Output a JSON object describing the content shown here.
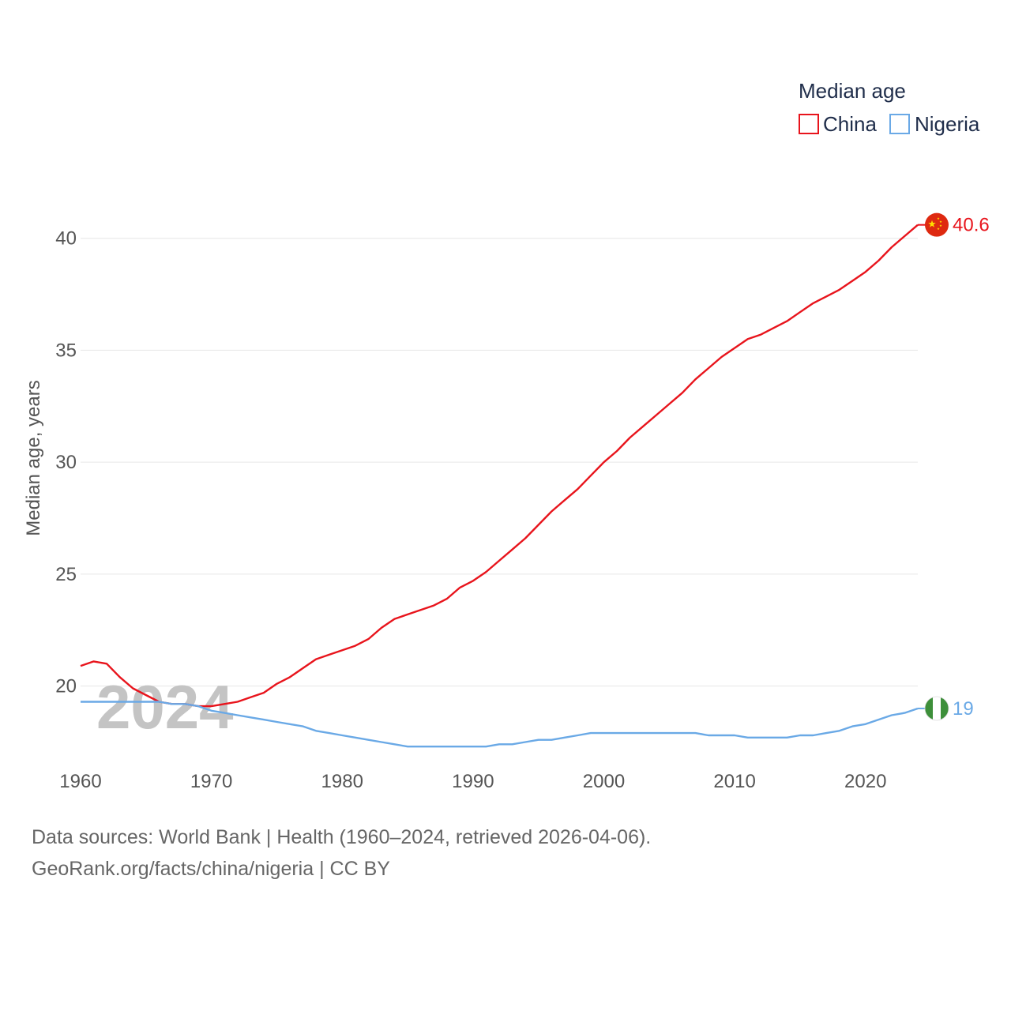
{
  "chart_data": {
    "type": "line",
    "legend_title": "Median age",
    "ylabel": "Median age, years",
    "xlim": [
      1960,
      2024
    ],
    "ylim": [
      16.6,
      42.0
    ],
    "x_ticks": [
      1960,
      1970,
      1980,
      1990,
      2000,
      2010,
      2020
    ],
    "y_ticks": [
      20,
      25,
      30,
      35,
      40
    ],
    "year_label": "2024",
    "x": [
      1960,
      1961,
      1962,
      1963,
      1964,
      1965,
      1966,
      1967,
      1968,
      1969,
      1970,
      1971,
      1972,
      1973,
      1974,
      1975,
      1976,
      1977,
      1978,
      1979,
      1980,
      1981,
      1982,
      1983,
      1984,
      1985,
      1986,
      1987,
      1988,
      1989,
      1990,
      1991,
      1992,
      1993,
      1994,
      1995,
      1996,
      1997,
      1998,
      1999,
      2000,
      2001,
      2002,
      2003,
      2004,
      2005,
      2006,
      2007,
      2008,
      2009,
      2010,
      2011,
      2012,
      2013,
      2014,
      2015,
      2016,
      2017,
      2018,
      2019,
      2020,
      2021,
      2022,
      2023,
      2024
    ],
    "series": [
      {
        "name": "China",
        "color": "#e8141c",
        "end_label": "40.6",
        "flag_icon": "china-flag-icon",
        "values": [
          20.9,
          21.1,
          21.0,
          20.4,
          19.9,
          19.6,
          19.3,
          19.2,
          19.2,
          19.1,
          19.1,
          19.2,
          19.3,
          19.5,
          19.7,
          20.1,
          20.4,
          20.8,
          21.2,
          21.4,
          21.6,
          21.8,
          22.1,
          22.6,
          23.0,
          23.2,
          23.4,
          23.6,
          23.9,
          24.4,
          24.7,
          25.1,
          25.6,
          26.1,
          26.6,
          27.2,
          27.8,
          28.3,
          28.8,
          29.4,
          30.0,
          30.5,
          31.1,
          31.6,
          32.1,
          32.6,
          33.1,
          33.7,
          34.2,
          34.7,
          35.1,
          35.5,
          35.7,
          36.0,
          36.3,
          36.7,
          37.1,
          37.4,
          37.7,
          38.1,
          38.5,
          39.0,
          39.6,
          40.1,
          40.6
        ]
      },
      {
        "name": "Nigeria",
        "color": "#6aa9e6",
        "end_label": "19",
        "flag_icon": "nigeria-flag-icon",
        "values": [
          19.3,
          19.3,
          19.3,
          19.3,
          19.3,
          19.3,
          19.3,
          19.2,
          19.2,
          19.1,
          18.9,
          18.8,
          18.7,
          18.6,
          18.5,
          18.4,
          18.3,
          18.2,
          18.0,
          17.9,
          17.8,
          17.7,
          17.6,
          17.5,
          17.4,
          17.3,
          17.3,
          17.3,
          17.3,
          17.3,
          17.3,
          17.3,
          17.4,
          17.4,
          17.5,
          17.6,
          17.6,
          17.7,
          17.8,
          17.9,
          17.9,
          17.9,
          17.9,
          17.9,
          17.9,
          17.9,
          17.9,
          17.9,
          17.8,
          17.8,
          17.8,
          17.7,
          17.7,
          17.7,
          17.7,
          17.8,
          17.8,
          17.9,
          18.0,
          18.2,
          18.3,
          18.5,
          18.7,
          18.8,
          19.0
        ]
      }
    ]
  },
  "footer": {
    "line1": "Data sources: World Bank | Health (1960–2024, retrieved 2026-04-06).",
    "line2": "GeoRank.org/facts/china/nigeria | CC BY"
  }
}
